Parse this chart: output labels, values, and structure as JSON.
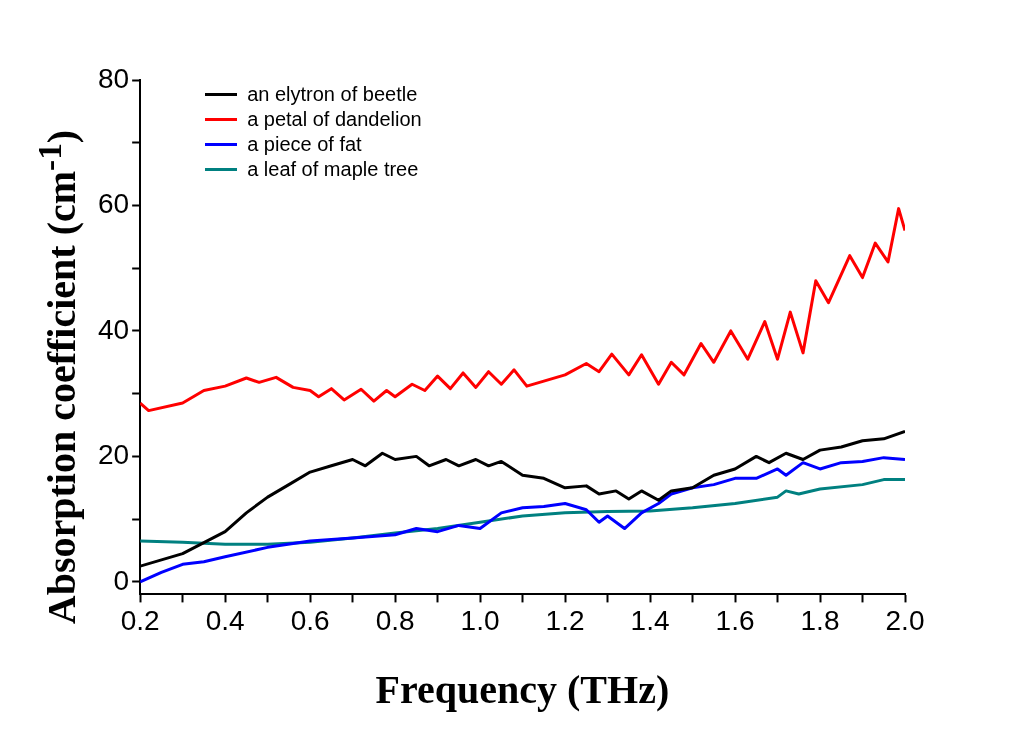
{
  "chart_data": {
    "type": "line",
    "xlabel": "Frequency (THz)",
    "ylabel": "Absorption coefficient (cm$^{-1}$)",
    "xlim": [
      0.2,
      2.0
    ],
    "xticks": [
      0.2,
      {
        "value": 0.3,
        "label": null
      },
      0.4,
      {
        "value": 0.5,
        "label": null
      },
      0.6,
      {
        "value": 0.7,
        "label": null
      },
      0.8,
      {
        "value": 0.9,
        "label": null
      },
      {
        "value": 1.0,
        "label": "1.0"
      },
      {
        "value": 1.1,
        "label": null
      },
      1.2,
      {
        "value": 1.3,
        "label": null
      },
      1.4,
      {
        "value": 1.5,
        "label": null
      },
      1.6,
      {
        "value": 1.7,
        "label": null
      },
      1.8,
      {
        "value": 1.9,
        "label": null
      },
      {
        "value": 2.0,
        "label": "2.0"
      }
    ],
    "ylim": [
      -2,
      80
    ],
    "yticks": [
      0,
      {
        "value": 10,
        "label": null
      },
      20,
      {
        "value": 30,
        "label": null
      },
      40,
      {
        "value": 50,
        "label": null
      },
      60,
      {
        "value": 70,
        "label": null
      },
      80
    ],
    "grid": false,
    "legend": "top left",
    "marker": "none",
    "line_style": "solid",
    "series": [
      {
        "name": "an elytron of beetle",
        "color": "#000000",
        "x": [
          0.2,
          0.3,
          0.4,
          0.45,
          0.5,
          0.55,
          0.6,
          0.65,
          0.7,
          0.73,
          0.77,
          0.8,
          0.85,
          0.88,
          0.92,
          0.95,
          0.99,
          1.02,
          1.05,
          1.1,
          1.15,
          1.2,
          1.25,
          1.28,
          1.32,
          1.35,
          1.38,
          1.42,
          1.45,
          1.5,
          1.55,
          1.6,
          1.65,
          1.68,
          1.72,
          1.76,
          1.8,
          1.85,
          1.9,
          1.95,
          2.0
        ],
        "values": [
          2.5,
          4.5,
          8,
          11,
          13.5,
          15.5,
          17.5,
          18.5,
          19.5,
          18.5,
          20.5,
          19.5,
          20,
          18.5,
          19.5,
          18.5,
          19.5,
          18.5,
          19.2,
          17,
          16.5,
          15,
          15.3,
          14,
          14.5,
          13.2,
          14.5,
          13,
          14.5,
          15,
          17,
          18,
          20,
          19,
          20.5,
          19.5,
          21,
          21.5,
          22.5,
          22.8,
          24
        ]
      },
      {
        "name": "a petal of dandelion",
        "color": "#ff0000",
        "x": [
          0.2,
          0.22,
          0.3,
          0.35,
          0.4,
          0.45,
          0.48,
          0.52,
          0.56,
          0.6,
          0.62,
          0.65,
          0.68,
          0.72,
          0.75,
          0.78,
          0.8,
          0.84,
          0.87,
          0.9,
          0.93,
          0.96,
          0.99,
          1.02,
          1.05,
          1.08,
          1.11,
          1.15,
          1.2,
          1.25,
          1.28,
          1.31,
          1.35,
          1.38,
          1.42,
          1.45,
          1.48,
          1.52,
          1.55,
          1.59,
          1.63,
          1.67,
          1.7,
          1.73,
          1.76,
          1.79,
          1.82,
          1.87,
          1.9,
          1.93,
          1.96,
          1.985,
          2.0
        ],
        "values": [
          28.5,
          27.3,
          28.5,
          30.5,
          31.2,
          32.5,
          31.8,
          32.6,
          31,
          30.5,
          29.5,
          30.8,
          29,
          30.7,
          28.8,
          30.5,
          29.5,
          31.5,
          30.5,
          32.8,
          30.8,
          33.3,
          31,
          33.5,
          31.5,
          33.8,
          31.2,
          32,
          33,
          34.8,
          33.5,
          36.3,
          33,
          36.2,
          31.5,
          35,
          33,
          38,
          35,
          40,
          35.5,
          41.5,
          35.5,
          43,
          36.5,
          48,
          44.5,
          52,
          48.5,
          54,
          51,
          59.5,
          56
        ]
      },
      {
        "name": "a piece of fat",
        "color": "#0000ff",
        "x": [
          0.2,
          0.25,
          0.3,
          0.35,
          0.4,
          0.5,
          0.6,
          0.7,
          0.8,
          0.85,
          0.9,
          0.95,
          1.0,
          1.05,
          1.1,
          1.15,
          1.2,
          1.25,
          1.28,
          1.3,
          1.34,
          1.38,
          1.42,
          1.45,
          1.5,
          1.55,
          1.6,
          1.65,
          1.7,
          1.72,
          1.76,
          1.8,
          1.85,
          1.9,
          1.95,
          2.0
        ],
        "values": [
          0,
          1.5,
          2.8,
          3.2,
          4,
          5.5,
          6.5,
          7,
          7.5,
          8.5,
          8,
          9,
          8.5,
          11,
          11.8,
          12,
          12.5,
          11.5,
          9.5,
          10.5,
          8.5,
          11,
          12.5,
          14,
          15,
          15.5,
          16.5,
          16.5,
          18,
          17,
          19,
          18,
          19,
          19.2,
          19.8,
          19.5
        ]
      },
      {
        "name": "a leaf of maple tree",
        "color": "#008080",
        "x": [
          0.2,
          0.3,
          0.4,
          0.5,
          0.6,
          0.7,
          0.8,
          0.9,
          1.0,
          1.1,
          1.2,
          1.3,
          1.4,
          1.5,
          1.6,
          1.7,
          1.72,
          1.75,
          1.8,
          1.9,
          1.95,
          2.0
        ],
        "values": [
          6.5,
          6.3,
          6,
          6,
          6.3,
          7,
          7.8,
          8.5,
          9.5,
          10.5,
          11,
          11.2,
          11.3,
          11.8,
          12.5,
          13.5,
          14.5,
          14,
          14.8,
          15.5,
          16.3,
          16.3
        ]
      }
    ]
  }
}
